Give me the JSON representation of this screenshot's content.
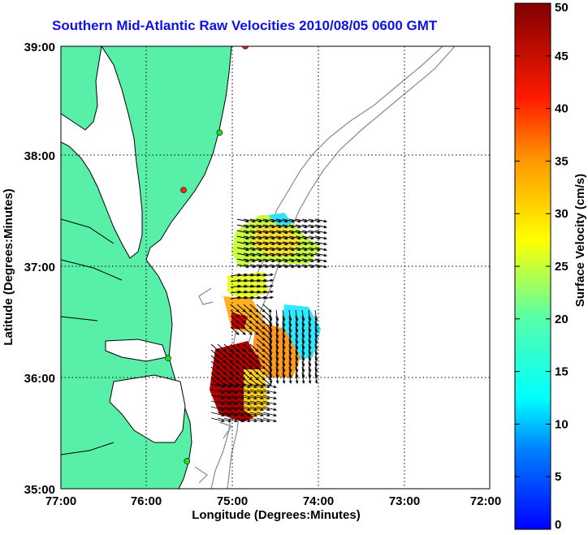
{
  "title": "Southern Mid-Atlantic Raw Velocities 2010/08/05 0600 GMT",
  "chart_data": {
    "type": "map-vector-field",
    "xlabel": "Longitude (Degrees:Minutes)",
    "ylabel": "Latitude (Degrees:Minutes)",
    "x_ticks": [
      "77:00",
      "76:00",
      "75:00",
      "74:00",
      "73:00",
      "72:00"
    ],
    "y_ticks": [
      "39:00",
      "38:00",
      "37:00",
      "36:00",
      "35:00"
    ],
    "xlim": [
      -77,
      -72
    ],
    "ylim": [
      35,
      39
    ],
    "grid": true,
    "colorbar": {
      "label": "Surface Velocity (cm/s)",
      "range": [
        0,
        50
      ],
      "ticks": [
        "0",
        "5",
        "10",
        "15",
        "20",
        "25",
        "30",
        "35",
        "40",
        "45",
        "50"
      ]
    },
    "stations": [
      {
        "lon": -74.85,
        "lat": 39.0,
        "color": "#ff2020"
      },
      {
        "lon": -75.15,
        "lat": 38.22,
        "color": "#20e020"
      },
      {
        "lon": -75.57,
        "lat": 37.7,
        "color": "#ff2020"
      },
      {
        "lon": -75.75,
        "lat": 36.18,
        "color": "#20e020"
      },
      {
        "lon": -75.53,
        "lat": 35.25,
        "color": "#20e020"
      }
    ],
    "colors": {
      "land": "#58f0a8",
      "coast": "#000000",
      "bathymetry": "#8a8a8a",
      "grid": "#000000",
      "arrow": "#000000"
    }
  }
}
